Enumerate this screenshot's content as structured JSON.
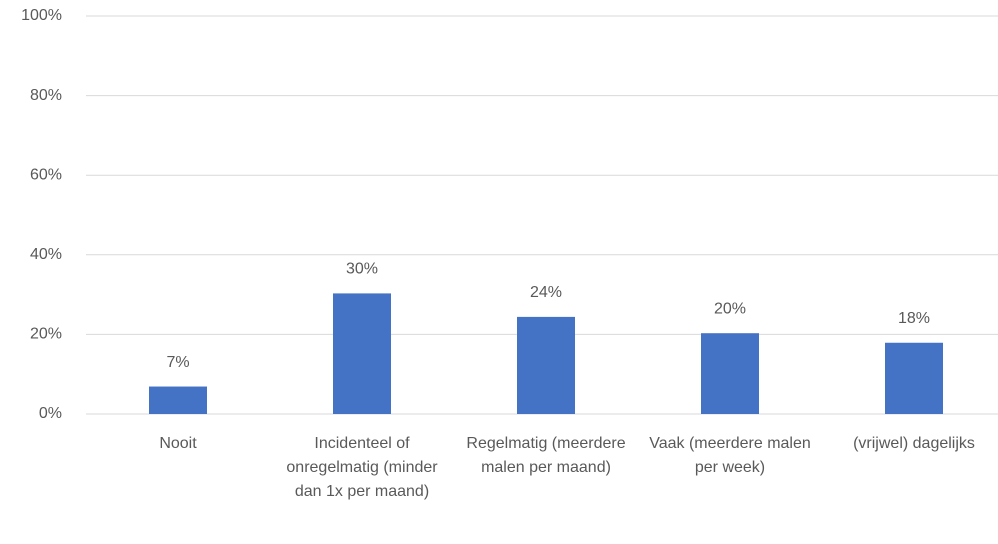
{
  "chart_data": {
    "type": "bar",
    "categories": [
      "Nooit",
      "Incidenteel of onregelmatig (minder dan 1x per maand)",
      "Regelmatig (meerdere malen per maand)",
      "Vaak (meerdere malen per week)",
      "(vrijwel) dagelijks"
    ],
    "values": [
      6.9,
      30.3,
      24.4,
      20.3,
      17.9
    ],
    "value_labels": [
      "7%",
      "30%",
      "24%",
      "20%",
      "18%"
    ],
    "color": "#4472c4",
    "ylim": [
      0,
      100
    ],
    "yticks": [
      {
        "value": 0,
        "label": "0%"
      },
      {
        "value": 20,
        "label": "20%"
      },
      {
        "value": 40,
        "label": "40%"
      },
      {
        "value": 60,
        "label": "60%"
      },
      {
        "value": 80,
        "label": "80%"
      },
      {
        "value": 100,
        "label": "100%"
      }
    ],
    "grid": true
  }
}
